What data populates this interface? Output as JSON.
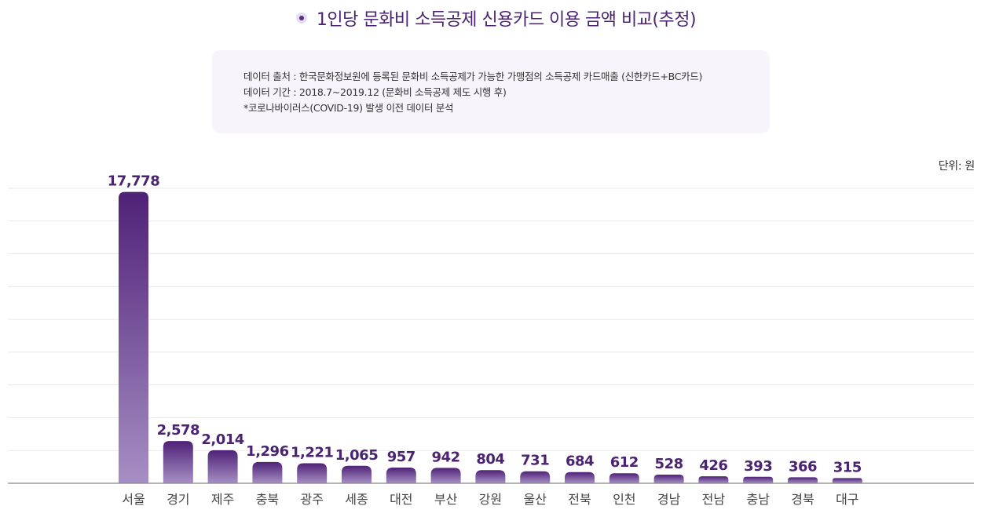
{
  "header": {
    "title": "1인당 문화비 소득공제 신용카드 이용 금액 비교(추정)"
  },
  "note": {
    "lines": [
      "데이터 출처 : 한국문화정보원에 등록된 문화비 소득공제가 가능한 가맹점의 소득공제 카드매출 (신한카드+BC카드)",
      "데이터 기간 : 2018.7~2019.12 (문화비 소득공제 제도 시행 후)",
      "*코로나바이러스(COVID-19) 발생 이전 데이터 분석"
    ]
  },
  "unit_label": "단위: 원",
  "colors": {
    "bar_top": "#4f2177",
    "bar_bottom": "#a68fc4",
    "value_text": "#4a2372",
    "grid": "#e9e9e9",
    "axis": "#888888"
  },
  "chart_data": {
    "type": "bar",
    "title": "1인당 문화비 소득공제 신용카드 이용 금액 비교(추정)",
    "categories": [
      "서울",
      "경기",
      "제주",
      "충북",
      "광주",
      "세종",
      "대전",
      "부산",
      "강원",
      "울산",
      "전북",
      "인천",
      "경남",
      "전남",
      "충남",
      "경북",
      "대구"
    ],
    "values": [
      17778,
      2578,
      2014,
      1296,
      1221,
      1065,
      957,
      942,
      804,
      731,
      684,
      612,
      528,
      426,
      393,
      366,
      315
    ],
    "value_labels": [
      "17,778",
      "2,578",
      "2,014",
      "1,296",
      "1,221",
      "1,065",
      "957",
      "942",
      "804",
      "731",
      "684",
      "612",
      "528",
      "426",
      "393",
      "366",
      "315"
    ],
    "ylabel": "단위: 원",
    "ylim": [
      0,
      18000
    ],
    "grid": true,
    "legend": "none"
  }
}
